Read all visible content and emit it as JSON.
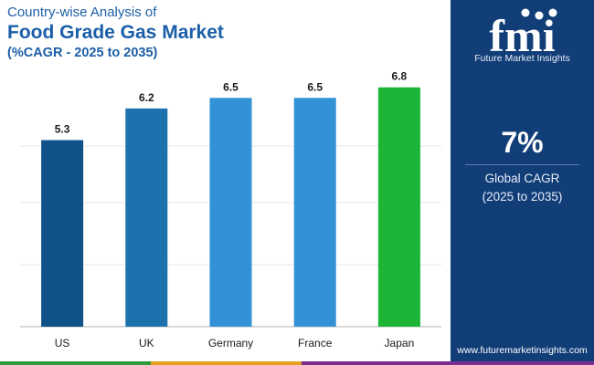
{
  "header": {
    "subtitle": "Country-wise Analysis of",
    "title": "Food Grade Gas Market",
    "cagr_range": "(%CAGR - 2025 to 2035)"
  },
  "chart_data": {
    "type": "bar",
    "categories": [
      "US",
      "UK",
      "Germany",
      "France",
      "Japan"
    ],
    "values": [
      5.3,
      6.2,
      6.5,
      6.5,
      6.8
    ],
    "colors": [
      "#0e5289",
      "#1d72ae",
      "#3392d6",
      "#3392d6",
      "#1db537"
    ],
    "ylim": [
      0,
      7
    ],
    "grid": true,
    "xlabel": "",
    "ylabel": ""
  },
  "sidebar": {
    "logo_text": "fmi",
    "logo_subtitle": "Future Market Insights",
    "stat_value": "7%",
    "stat_label": "Global CAGR",
    "stat_range": "(2025 to 2035)",
    "website": "www.futuremarketinsights.com",
    "bg_color": "#123e78"
  },
  "bottom_bar_colors": [
    "#2c9c3b",
    "#e8a020",
    "#7a2e8f"
  ]
}
